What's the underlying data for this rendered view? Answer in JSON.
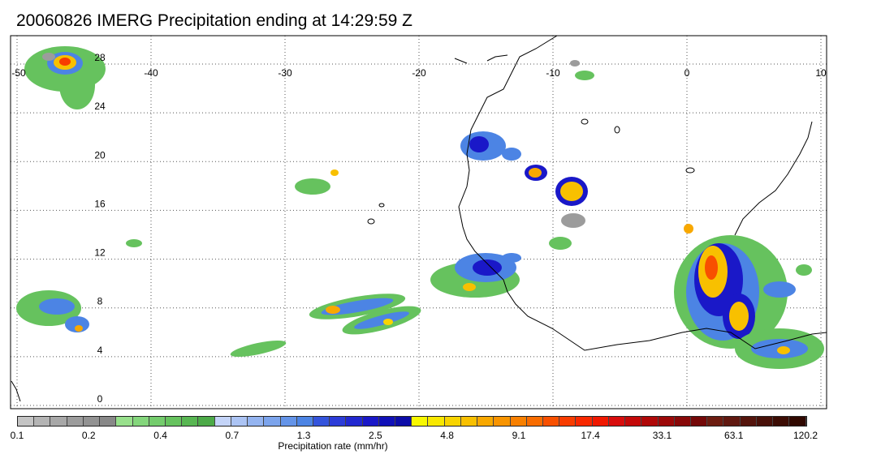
{
  "title": "20060826 IMERG Precipitation ending at 14:29:59 Z",
  "map": {
    "lon_range": [
      -50,
      10
    ],
    "lat_range": [
      -1,
      29
    ],
    "lon_ticks": [
      "-50",
      "-40",
      "-30",
      "-20",
      "-10",
      "0",
      "10"
    ],
    "lat_ticks": [
      "28",
      "24",
      "20",
      "16",
      "12",
      "8",
      "4",
      "0"
    ],
    "coastline_color": "#000000",
    "grid_style": "dotted"
  },
  "colorbar": {
    "label": "Precipitation rate (mm/hr)",
    "tick_labels": [
      "0.1",
      "0.2",
      "0.4",
      "0.7",
      "1.3",
      "2.5",
      "4.8",
      "9.1",
      "17.4",
      "33.1",
      "63.1",
      "120.2"
    ],
    "colors": [
      "#c4c4c4",
      "#b4b4b4",
      "#a8a8a8",
      "#9c9c9c",
      "#929292",
      "#888888",
      "#98e08c",
      "#84d67c",
      "#74cc6c",
      "#66c25e",
      "#58b652",
      "#4caa48",
      "#c4d4f8",
      "#acc4f4",
      "#94b4f0",
      "#7ca4ec",
      "#6494e8",
      "#4c84e4",
      "#3454dc",
      "#2c3cd8",
      "#2228d0",
      "#1a18c8",
      "#1010b8",
      "#0c0ca8",
      "#f8f800",
      "#f8e800",
      "#f8d400",
      "#f8c000",
      "#f8a800",
      "#f89400",
      "#f88000",
      "#f86c00",
      "#f85000",
      "#f83c00",
      "#f82800",
      "#f01800",
      "#d80c0c",
      "#c40808",
      "#b00808",
      "#9c0808",
      "#880808",
      "#740808",
      "#6c1c10",
      "#601810",
      "#54140c",
      "#481008",
      "#3c0c04",
      "#300800"
    ]
  }
}
